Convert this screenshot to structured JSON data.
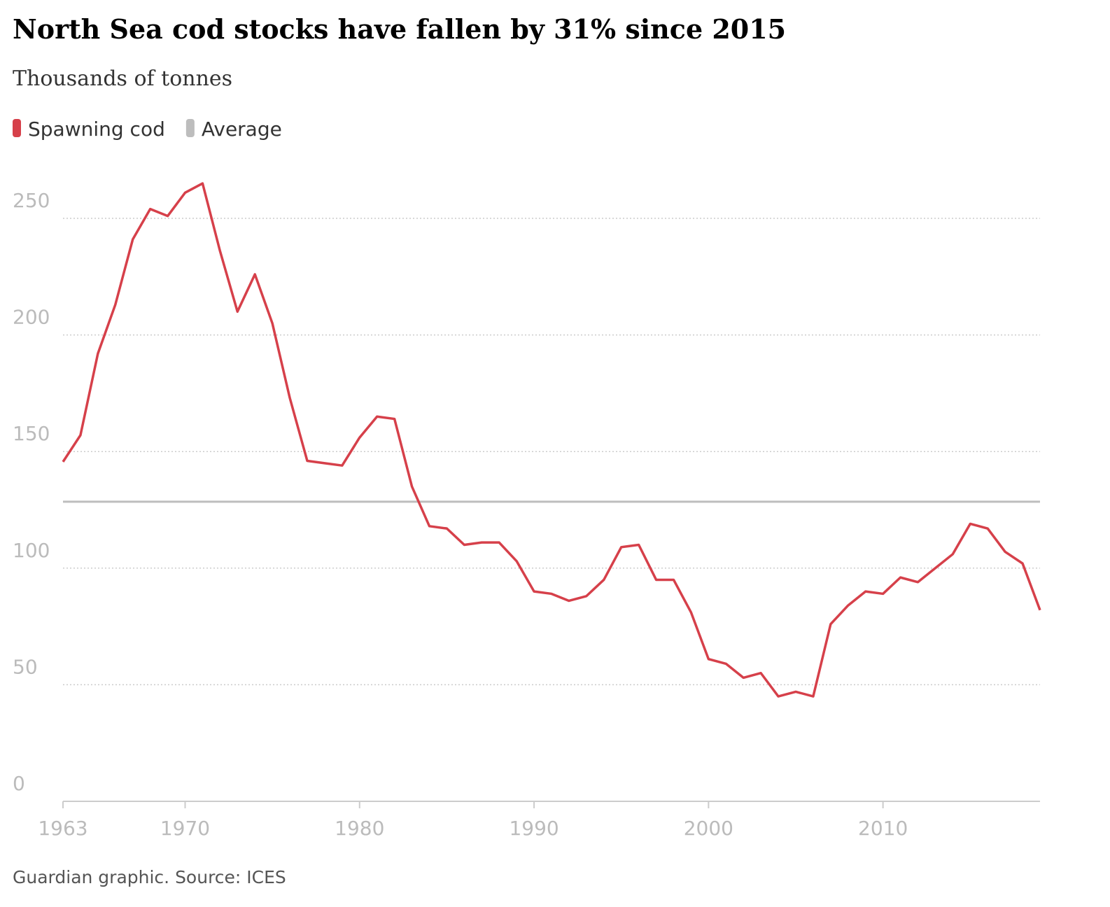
{
  "chart_data": {
    "type": "line",
    "title": "North Sea cod stocks have fallen by 31% since 2015",
    "subtitle": "Thousands of tonnes",
    "source": "Guardian graphic. Source: ICES",
    "x": [
      1963,
      1964,
      1965,
      1966,
      1967,
      1968,
      1969,
      1970,
      1971,
      1972,
      1973,
      1974,
      1975,
      1976,
      1977,
      1978,
      1979,
      1980,
      1981,
      1982,
      1983,
      1984,
      1985,
      1986,
      1987,
      1988,
      1989,
      1990,
      1991,
      1992,
      1993,
      1994,
      1995,
      1996,
      1997,
      1998,
      1999,
      2000,
      2001,
      2002,
      2003,
      2004,
      2005,
      2006,
      2007,
      2008,
      2009,
      2010,
      2011,
      2012,
      2013,
      2014,
      2015,
      2016,
      2017,
      2018,
      2019
    ],
    "series": [
      {
        "name": "Spawning cod",
        "color": "#d6404a",
        "values": [
          145.6,
          157,
          192,
          213,
          241,
          254,
          251,
          261,
          265,
          236,
          210,
          226,
          205,
          173,
          146,
          145,
          144,
          156,
          165,
          164,
          135,
          118,
          117,
          110,
          111,
          111,
          103,
          90,
          89,
          86,
          88,
          95,
          109,
          110,
          95,
          95,
          81,
          61,
          59,
          53,
          55,
          45,
          47,
          45,
          76,
          84,
          90,
          89,
          96,
          94,
          100,
          106,
          119,
          117,
          107,
          102,
          82
        ]
      }
    ],
    "average": {
      "name": "Average",
      "color": "#bdbdbd",
      "value": 128.5
    },
    "xlim": [
      1963,
      2019
    ],
    "xticks": [
      1963,
      1970,
      1980,
      1990,
      2000,
      2010
    ],
    "ylim": [
      0,
      250
    ],
    "yticks": [
      0,
      50,
      100,
      150,
      200,
      250
    ],
    "grid": true
  }
}
